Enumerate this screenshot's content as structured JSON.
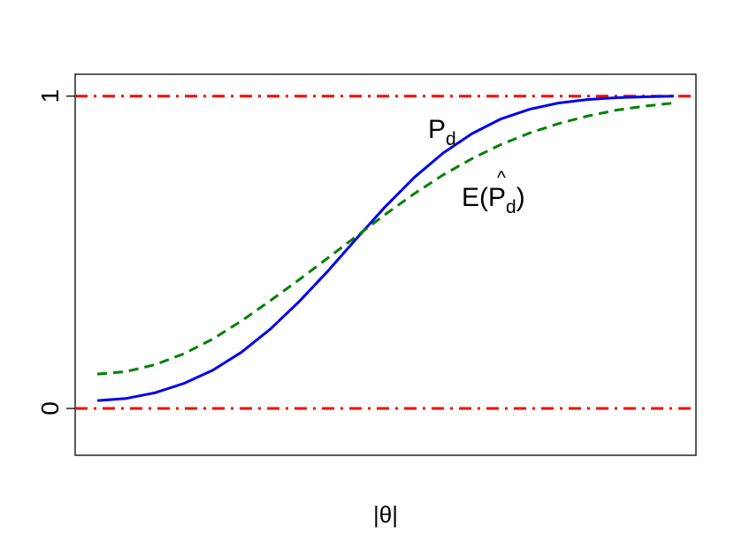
{
  "chart_data": {
    "type": "line",
    "title": "",
    "xlabel": "|θ|",
    "ylabel": "",
    "xlim": [
      0,
      1
    ],
    "ylim": [
      -0.15,
      1.07
    ],
    "yticks": [
      {
        "value": 0,
        "label": "0"
      },
      {
        "value": 1,
        "label": "1"
      }
    ],
    "grid": false,
    "legend": "none",
    "reference_lines": [
      {
        "y": 0,
        "color": "#ff0000",
        "style": "dash-dot"
      },
      {
        "y": 1,
        "color": "#ff0000",
        "style": "dash-dot"
      }
    ],
    "series": [
      {
        "key": "pd",
        "label_main": "P",
        "label_sub": "d",
        "color": "#0000ee",
        "style": "solid",
        "x": [
          0,
          0.05,
          0.1,
          0.15,
          0.2,
          0.25,
          0.3,
          0.35,
          0.4,
          0.45,
          0.5,
          0.55,
          0.6,
          0.65,
          0.7,
          0.75,
          0.8,
          0.85,
          0.9,
          0.95,
          1
        ],
        "y": [
          0.025,
          0.032,
          0.05,
          0.08,
          0.122,
          0.18,
          0.254,
          0.342,
          0.44,
          0.545,
          0.647,
          0.74,
          0.818,
          0.88,
          0.927,
          0.958,
          0.978,
          0.989,
          0.995,
          0.998,
          1.0
        ]
      },
      {
        "key": "e_pd",
        "label_main": "E(",
        "label_hat": "^",
        "label_p": "P",
        "label_sub": "d",
        "label_close": ")",
        "color": "#008000",
        "style": "dashed",
        "x": [
          0,
          0.05,
          0.1,
          0.15,
          0.2,
          0.25,
          0.3,
          0.35,
          0.4,
          0.45,
          0.5,
          0.55,
          0.6,
          0.65,
          0.7,
          0.75,
          0.8,
          0.85,
          0.9,
          0.95,
          1
        ],
        "y": [
          0.11,
          0.118,
          0.14,
          0.175,
          0.222,
          0.28,
          0.345,
          0.412,
          0.482,
          0.552,
          0.622,
          0.688,
          0.748,
          0.8,
          0.845,
          0.882,
          0.912,
          0.936,
          0.955,
          0.968,
          0.978
        ]
      }
    ]
  }
}
